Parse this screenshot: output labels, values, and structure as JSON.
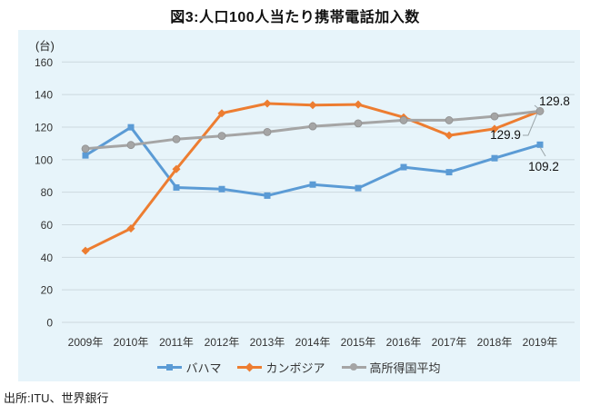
{
  "title": "図3:人口100人当たり携帯電話加入数",
  "source": "出所:ITU、世界銀行",
  "chart_data": {
    "type": "line",
    "title": "図3:人口100人当たり携帯電話加入数",
    "ylabel": "(台)",
    "xlabel": "",
    "categories": [
      "2009年",
      "2010年",
      "2011年",
      "2012年",
      "2013年",
      "2014年",
      "2015年",
      "2016年",
      "2017年",
      "2018年",
      "2019年"
    ],
    "ylim": [
      0,
      160
    ],
    "ytick_interval": 20,
    "yticks": [
      "0",
      "20",
      "40",
      "60",
      "80",
      "100",
      "120",
      "140",
      "160"
    ],
    "grid": true,
    "legend_position": "bottom",
    "plot_background": "#e7f4fa",
    "gridline_color": "#ccd8de",
    "series": [
      {
        "name": "バハマ",
        "color": "#5b9bd5",
        "marker": "square",
        "values": [
          102.6,
          119.9,
          82.9,
          81.9,
          77.9,
          84.7,
          82.5,
          95.4,
          92.3,
          100.9,
          109.2
        ]
      },
      {
        "name": "カンボジア",
        "color": "#ed7d31",
        "marker": "diamond",
        "values": [
          44.0,
          57.7,
          94.2,
          128.5,
          134.5,
          133.5,
          133.9,
          126.0,
          114.9,
          118.9,
          129.9
        ]
      },
      {
        "name": "高所得国平均",
        "color": "#a5a5a5",
        "marker": "circle",
        "values": [
          106.7,
          109.0,
          112.6,
          114.6,
          117.0,
          120.5,
          122.3,
          124.2,
          124.2,
          126.6,
          129.8
        ]
      }
    ],
    "end_labels": [
      {
        "series": "高所得国平均",
        "text": "129.8"
      },
      {
        "series": "カンボジア",
        "text": "129.9"
      },
      {
        "series": "バハマ",
        "text": "109.2"
      }
    ]
  }
}
